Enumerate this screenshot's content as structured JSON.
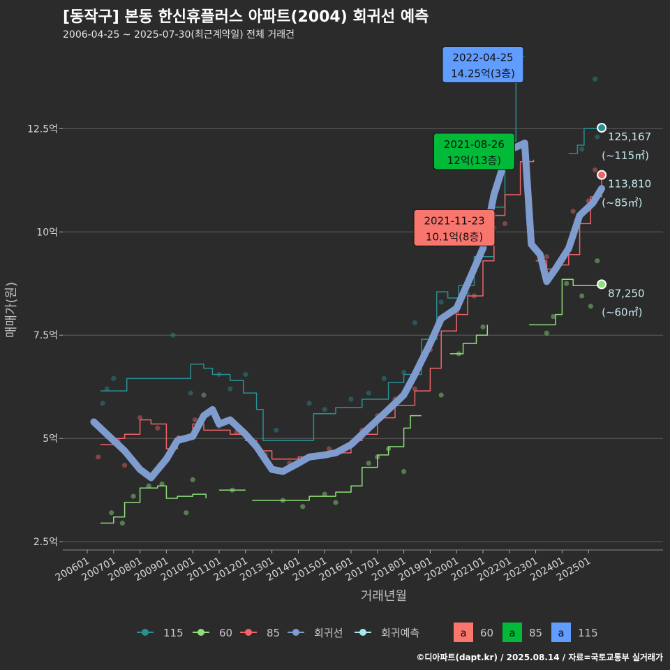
{
  "title": "[동작구] 본동 한신휴플러스 아파트(2004) 회귀선 예측",
  "subtitle": "2006-04-25 ~ 2025-07-30(최근계약일) 전체 거래건",
  "footer": "©디아파트(dapt.kr) / 2025.08.14 / 자료=국토교통부 실거래가",
  "colors": {
    "background": "#2b2b2c",
    "s115": "#2a8f93",
    "s60": "#8de07a",
    "s85": "#f06468",
    "regression": "#7f9ccf",
    "forecast": "#a8e8ee"
  },
  "chart_data": {
    "type": "line",
    "xlabel": "거래년월",
    "ylabel": "매매가(원)",
    "x_range": [
      "2006-01",
      "2025-12"
    ],
    "ylim": [
      2.3,
      14.6
    ],
    "y_ticks": [
      {
        "value": 2.5,
        "label": "2.5억"
      },
      {
        "value": 5,
        "label": "5억"
      },
      {
        "value": 7.5,
        "label": "7.5억"
      },
      {
        "value": 10,
        "label": "10억"
      },
      {
        "value": 12.5,
        "label": "12.5억"
      }
    ],
    "x_ticks": [
      "200601",
      "200701",
      "200801",
      "200901",
      "201001",
      "201101",
      "201201",
      "201301",
      "201401",
      "201501",
      "201601",
      "201701",
      "201801",
      "201901",
      "202001",
      "202101",
      "202201",
      "202301",
      "202401",
      "202501"
    ],
    "grid": true,
    "series": [
      {
        "name": "115",
        "type": "line",
        "color": "#2a8f93",
        "points": [
          [
            "2006-07",
            6.15
          ],
          [
            "2007-01",
            6.15
          ],
          [
            "2007-07",
            6.45
          ],
          [
            "2009-12",
            6.8
          ],
          [
            "2010-06",
            6.7
          ],
          [
            "2010-10",
            6.55
          ],
          [
            "2011-06",
            6.4
          ],
          [
            "2011-12",
            6.1
          ],
          [
            "2012-06",
            5.7
          ],
          [
            "2012-09",
            4.95
          ],
          [
            "2014-08",
            5.6
          ],
          [
            "2015-06",
            5.75
          ],
          [
            "2016-06",
            5.95
          ],
          [
            "2017-06",
            6.35
          ],
          [
            "2018-01",
            6.55
          ],
          [
            "2018-09",
            7.4
          ],
          [
            "2019-04",
            8.55
          ],
          [
            "2019-09",
            8.4
          ],
          [
            "2020-02",
            8.7
          ],
          [
            "2020-09",
            9.4
          ],
          [
            "2021-06",
            10.6
          ],
          [
            "2021-11",
            12.2
          ],
          [
            "2022-04",
            14.25
          ],
          [
            "2022-08",
            14.25
          ]
        ]
      },
      {
        "name": "115",
        "type": "line",
        "color": "#2a8f93",
        "points": [
          [
            "2024-04",
            11.9
          ],
          [
            "2024-08",
            12.1
          ],
          [
            "2024-11",
            12.5
          ],
          [
            "2025-07",
            12.52
          ]
        ]
      },
      {
        "name": "60",
        "type": "line",
        "color": "#8de07a",
        "points": [
          [
            "2006-07",
            2.95
          ],
          [
            "2007-01",
            3.1
          ],
          [
            "2007-06",
            3.45
          ],
          [
            "2008-01",
            3.8
          ],
          [
            "2008-09",
            3.85
          ],
          [
            "2009-01",
            3.55
          ],
          [
            "2009-06",
            3.6
          ],
          [
            "2010-01",
            3.65
          ],
          [
            "2010-07",
            3.55
          ]
        ]
      },
      {
        "name": "60",
        "type": "line",
        "color": "#8de07a",
        "points": [
          [
            "2011-01",
            3.75
          ],
          [
            "2012-01",
            3.75
          ]
        ]
      },
      {
        "name": "60",
        "type": "line",
        "color": "#8de07a",
        "points": [
          [
            "2012-04",
            3.5
          ],
          [
            "2013-06",
            3.5
          ],
          [
            "2014-06",
            3.6
          ],
          [
            "2015-06",
            3.7
          ],
          [
            "2016-01",
            3.85
          ],
          [
            "2016-06",
            4.3
          ],
          [
            "2017-01",
            4.6
          ],
          [
            "2017-06",
            4.8
          ],
          [
            "2018-01",
            5.25
          ],
          [
            "2018-04",
            5.55
          ],
          [
            "2018-09",
            5.55
          ]
        ]
      },
      {
        "name": "60",
        "type": "line",
        "color": "#8de07a",
        "points": [
          [
            "2019-10",
            7.05
          ],
          [
            "2020-04",
            7.3
          ],
          [
            "2020-10",
            7.5
          ],
          [
            "2021-03",
            7.75
          ]
        ]
      },
      {
        "name": "60",
        "type": "line",
        "color": "#8de07a",
        "points": [
          [
            "2022-10",
            7.75
          ],
          [
            "2023-10",
            8.0
          ],
          [
            "2024-01",
            8.85
          ],
          [
            "2024-06",
            8.7
          ],
          [
            "2025-07",
            8.73
          ]
        ]
      },
      {
        "name": "85",
        "type": "line",
        "color": "#f06468",
        "points": [
          [
            "2006-07",
            4.85
          ],
          [
            "2007-01",
            5.0
          ],
          [
            "2007-06",
            5.1
          ],
          [
            "2008-01",
            5.45
          ],
          [
            "2008-06",
            5.35
          ],
          [
            "2009-01",
            4.75
          ],
          [
            "2009-06",
            5.05
          ],
          [
            "2010-01",
            5.35
          ],
          [
            "2010-06",
            5.2
          ],
          [
            "2011-06",
            5.1
          ],
          [
            "2012-01",
            4.95
          ],
          [
            "2012-06",
            4.7
          ],
          [
            "2013-01",
            4.5
          ],
          [
            "2014-01",
            4.55
          ],
          [
            "2015-01",
            4.65
          ],
          [
            "2016-01",
            4.95
          ],
          [
            "2016-06",
            5.1
          ],
          [
            "2017-01",
            5.5
          ],
          [
            "2017-09",
            5.8
          ],
          [
            "2018-06",
            6.15
          ],
          [
            "2019-01",
            6.7
          ],
          [
            "2019-06",
            7.6
          ],
          [
            "2020-01",
            8.0
          ],
          [
            "2020-06",
            8.45
          ],
          [
            "2021-01",
            9.3
          ],
          [
            "2021-06",
            10.4
          ],
          [
            "2021-11",
            10.9
          ],
          [
            "2022-06",
            11.7
          ],
          [
            "2022-12",
            11.75
          ]
        ]
      },
      {
        "name": "85",
        "type": "line",
        "color": "#f06468",
        "points": [
          [
            "2023-01",
            9.3
          ],
          [
            "2023-06",
            9.1
          ],
          [
            "2023-11",
            9.2
          ],
          [
            "2024-04",
            9.45
          ],
          [
            "2024-09",
            10.2
          ],
          [
            "2025-02",
            10.85
          ],
          [
            "2025-07",
            11.38
          ]
        ]
      }
    ],
    "regression": {
      "name": "회귀선",
      "color": "#7f9ccf",
      "points": [
        [
          "2006-04",
          5.4
        ],
        [
          "2006-10",
          5.1
        ],
        [
          "2007-06",
          4.7
        ],
        [
          "2008-01",
          4.25
        ],
        [
          "2008-06",
          4.05
        ],
        [
          "2009-01",
          4.5
        ],
        [
          "2009-06",
          4.95
        ],
        [
          "2010-01",
          5.05
        ],
        [
          "2010-06",
          5.55
        ],
        [
          "2010-10",
          5.7
        ],
        [
          "2011-01",
          5.35
        ],
        [
          "2011-06",
          5.45
        ],
        [
          "2012-01",
          5.1
        ],
        [
          "2012-06",
          4.8
        ],
        [
          "2013-01",
          4.25
        ],
        [
          "2013-06",
          4.2
        ],
        [
          "2014-01",
          4.4
        ],
        [
          "2014-06",
          4.55
        ],
        [
          "2015-01",
          4.6
        ],
        [
          "2015-06",
          4.65
        ],
        [
          "2016-01",
          4.85
        ],
        [
          "2016-06",
          5.1
        ],
        [
          "2017-01",
          5.45
        ],
        [
          "2017-06",
          5.7
        ],
        [
          "2018-01",
          6.05
        ],
        [
          "2018-06",
          6.55
        ],
        [
          "2019-01",
          7.3
        ],
        [
          "2019-06",
          7.9
        ],
        [
          "2020-01",
          8.15
        ],
        [
          "2020-06",
          8.75
        ],
        [
          "2021-01",
          9.6
        ],
        [
          "2021-06",
          10.9
        ],
        [
          "2021-09",
          11.4
        ],
        [
          "2021-12",
          12.0
        ],
        [
          "2022-04",
          12.05
        ],
        [
          "2022-08",
          12.15
        ],
        [
          "2022-11",
          9.7
        ],
        [
          "2023-03",
          9.45
        ],
        [
          "2023-06",
          8.8
        ],
        [
          "2023-10",
          9.1
        ],
        [
          "2024-04",
          9.6
        ],
        [
          "2024-09",
          10.4
        ],
        [
          "2025-03",
          10.7
        ],
        [
          "2025-07",
          11.05
        ]
      ]
    },
    "forecast": {
      "name": "회귀예측",
      "color": "#a8e8ee"
    },
    "scatter": {
      "115": [
        [
          "2006-08",
          5.85
        ],
        [
          "2006-10",
          6.2
        ],
        [
          "2007-01",
          6.45
        ],
        [
          "2009-04",
          7.5
        ],
        [
          "2009-12",
          6.1
        ],
        [
          "2010-06",
          6.05
        ],
        [
          "2011-01",
          6.55
        ],
        [
          "2011-06",
          6.2
        ],
        [
          "2012-01",
          6.55
        ],
        [
          "2013-03",
          5.2
        ],
        [
          "2014-06",
          5.85
        ],
        [
          "2015-01",
          5.7
        ],
        [
          "2016-01",
          5.95
        ],
        [
          "2016-09",
          6.1
        ],
        [
          "2017-04",
          6.45
        ],
        [
          "2018-01",
          6.6
        ],
        [
          "2018-06",
          7.8
        ],
        [
          "2019-06",
          8.3
        ],
        [
          "2020-06",
          8.5
        ],
        [
          "2021-01",
          9.6
        ],
        [
          "2021-06",
          10.4
        ],
        [
          "2024-10",
          12.0
        ],
        [
          "2025-04",
          13.7
        ],
        [
          "2025-05",
          12.3
        ]
      ],
      "60": [
        [
          "2006-12",
          3.2
        ],
        [
          "2007-05",
          2.95
        ],
        [
          "2007-10",
          3.6
        ],
        [
          "2008-05",
          3.85
        ],
        [
          "2008-11",
          3.9
        ],
        [
          "2009-10",
          3.2
        ],
        [
          "2010-01",
          4.0
        ],
        [
          "2011-07",
          3.75
        ],
        [
          "2013-06",
          3.5
        ],
        [
          "2014-03",
          3.35
        ],
        [
          "2015-01",
          3.65
        ],
        [
          "2015-06",
          3.45
        ],
        [
          "2016-09",
          4.4
        ],
        [
          "2017-01",
          4.55
        ],
        [
          "2017-06",
          4.75
        ],
        [
          "2018-01",
          4.2
        ],
        [
          "2019-06",
          6.05
        ],
        [
          "2020-02",
          7.05
        ],
        [
          "2021-01",
          7.7
        ],
        [
          "2023-06",
          7.55
        ],
        [
          "2023-09",
          7.95
        ],
        [
          "2024-03",
          8.75
        ],
        [
          "2024-10",
          8.45
        ],
        [
          "2025-02",
          8.2
        ],
        [
          "2025-05",
          9.3
        ]
      ],
      "85": [
        [
          "2006-06",
          4.55
        ],
        [
          "2007-03",
          4.95
        ],
        [
          "2007-06",
          4.35
        ],
        [
          "2008-01",
          5.5
        ],
        [
          "2008-09",
          5.25
        ],
        [
          "2010-02",
          5.45
        ],
        [
          "2010-06",
          6.05
        ],
        [
          "2011-01",
          5.3
        ],
        [
          "2011-09",
          5.15
        ],
        [
          "2012-03",
          4.95
        ],
        [
          "2012-10",
          4.6
        ],
        [
          "2013-09",
          4.4
        ],
        [
          "2014-06",
          4.55
        ],
        [
          "2015-03",
          4.75
        ],
        [
          "2016-06",
          5.2
        ],
        [
          "2017-01",
          5.55
        ],
        [
          "2017-09",
          5.95
        ],
        [
          "2018-01",
          6.05
        ],
        [
          "2018-06",
          6.2
        ],
        [
          "2019-01",
          7.15
        ],
        [
          "2019-06",
          7.85
        ],
        [
          "2020-01",
          8.05
        ],
        [
          "2020-09",
          8.45
        ],
        [
          "2021-06",
          10.1
        ],
        [
          "2021-11",
          10.2
        ],
        [
          "2022-08",
          11.75
        ],
        [
          "2023-06",
          9.4
        ],
        [
          "2024-06",
          10.5
        ],
        [
          "2025-01",
          10.75
        ],
        [
          "2025-04",
          11.5
        ]
      ]
    },
    "annotations": [
      {
        "date": "2022-04-25",
        "text": "14.25억(3층)",
        "fill": "#619cff",
        "x": "2021-01",
        "y": 14.05
      },
      {
        "date": "2021-08-26",
        "text": "12억(13층)",
        "fill": "#00ba38",
        "x": "2020-09",
        "y": 11.95
      },
      {
        "date": "2021-11-23",
        "text": "10.1억(8층)",
        "fill": "#f8766d",
        "x": "2019-12",
        "y": 10.1
      }
    ],
    "end_labels": [
      {
        "value": "125,167",
        "sub": "(~115㎡)",
        "color": "#2a8f93",
        "x": "2025-07",
        "y": 12.52
      },
      {
        "value": "113,810",
        "sub": "(~85㎡)",
        "color": "#f06468",
        "x": "2025-07",
        "y": 11.38
      },
      {
        "value": "87,250",
        "sub": "(~60㎡)",
        "color": "#8de07a",
        "x": "2025-07",
        "y": 8.73
      }
    ],
    "legend": {
      "placement": "bottom",
      "lines": [
        {
          "label": "115",
          "color": "#2a8f93"
        },
        {
          "label": "60",
          "color": "#8de07a"
        },
        {
          "label": "85",
          "color": "#f06468"
        },
        {
          "label": "회귀선",
          "color": "#7f9ccf"
        },
        {
          "label": "회귀예측",
          "color": "#a8e8ee"
        }
      ],
      "label_keys": [
        {
          "glyph": "a",
          "label": "60",
          "fill": "#f8766d"
        },
        {
          "glyph": "a",
          "label": "85",
          "fill": "#00ba38"
        },
        {
          "glyph": "a",
          "label": "115",
          "fill": "#619cff"
        }
      ]
    }
  }
}
